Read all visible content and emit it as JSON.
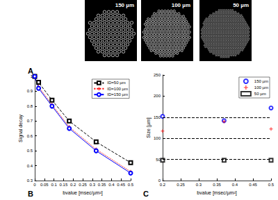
{
  "images": [
    {
      "label": "150 µm"
    },
    {
      "label": "100 µm"
    },
    {
      "label": "50 µm"
    }
  ],
  "panel_labels": [
    "A",
    "B",
    "C"
  ],
  "chart_data": [
    {
      "type": "line",
      "xlabel": "bvalue [msec/µm²]",
      "ylabel": "Signal decay",
      "x": [
        0,
        0.02,
        0.09,
        0.18,
        0.32,
        0.5
      ],
      "series": [
        {
          "name": "ID=50 µm",
          "color": "#000000",
          "marker": "square",
          "line_style": "dashed",
          "values": [
            1,
            0.96,
            0.84,
            0.7,
            0.56,
            0.42
          ]
        },
        {
          "name": "ID=100 µm",
          "color": "#ff0000",
          "marker": "plus",
          "line_style": "dotted",
          "values": [
            1,
            0.93,
            0.81,
            0.66,
            0.51,
            0.36
          ]
        },
        {
          "name": "ID=150 µm",
          "color": "#0000ff",
          "marker": "circle",
          "line_style": "solid",
          "values": [
            1,
            0.92,
            0.8,
            0.65,
            0.5,
            0.35
          ]
        }
      ],
      "xlim": [
        0,
        0.5
      ],
      "xticks": [
        0,
        0.05,
        0.1,
        0.15,
        0.2,
        0.25,
        0.3,
        0.35,
        0.4,
        0.45,
        0.5
      ],
      "ylim": [
        0.3,
        1
      ],
      "yticks": [
        0.3,
        0.4,
        0.5,
        0.6,
        0.7,
        0.8,
        0.9,
        1
      ],
      "grid": false,
      "legend": "upper right"
    },
    {
      "type": "scatter",
      "xlabel": "bvalue [msec/µm²]",
      "ylabel": "Size [µm]",
      "x": [
        0.2,
        0.37,
        0.5
      ],
      "series": [
        {
          "name": "150 µm",
          "color": "#0000ff",
          "marker": "circle",
          "values": [
            152,
            142,
            172
          ]
        },
        {
          "name": "100 µm",
          "color": "#ff0000",
          "marker": "plus",
          "values": [
            117,
            140,
            122
          ]
        },
        {
          "name": "50 µm",
          "color": "#000000",
          "marker": "square",
          "values": [
            48,
            48,
            48
          ]
        }
      ],
      "hlines": [
        50,
        100,
        150
      ],
      "xlim": [
        0.2,
        0.5
      ],
      "xticks": [
        0.2,
        0.25,
        0.3,
        0.35,
        0.4,
        0.45,
        0.5
      ],
      "ylim": [
        0,
        250
      ],
      "yticks": [
        0,
        50,
        100,
        150,
        200,
        250
      ],
      "grid": false,
      "legend": "upper right"
    }
  ]
}
